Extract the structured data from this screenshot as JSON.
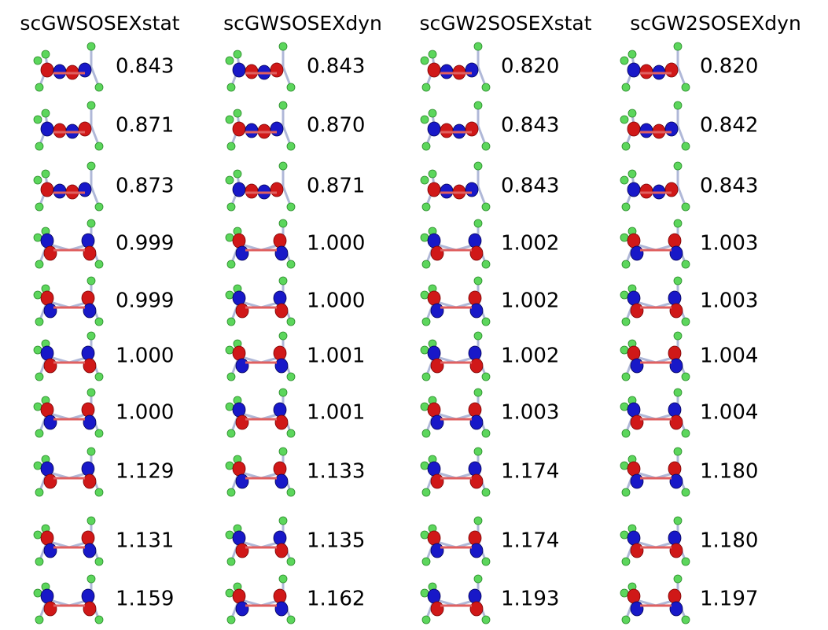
{
  "columns": [
    {
      "header": "scGWSOSEXstat",
      "values": [
        "0.843",
        "0.871",
        "0.873",
        "0.999",
        "0.999",
        "1.000",
        "1.000",
        "1.129",
        "1.131",
        "1.159"
      ]
    },
    {
      "header": "scGWSOSEXdyn",
      "values": [
        "0.843",
        "0.870",
        "0.871",
        "1.000",
        "1.000",
        "1.001",
        "1.001",
        "1.133",
        "1.135",
        "1.162"
      ]
    },
    {
      "header": "scGW2SOSEXstat",
      "values": [
        "0.820",
        "0.843",
        "0.843",
        "1.002",
        "1.002",
        "1.002",
        "1.003",
        "1.174",
        "1.174",
        "1.193"
      ]
    },
    {
      "header": "scGW2SOSEXdyn",
      "values": [
        "0.820",
        "0.842",
        "0.843",
        "1.003",
        "1.003",
        "1.004",
        "1.004",
        "1.180",
        "1.180",
        "1.197"
      ]
    }
  ]
}
